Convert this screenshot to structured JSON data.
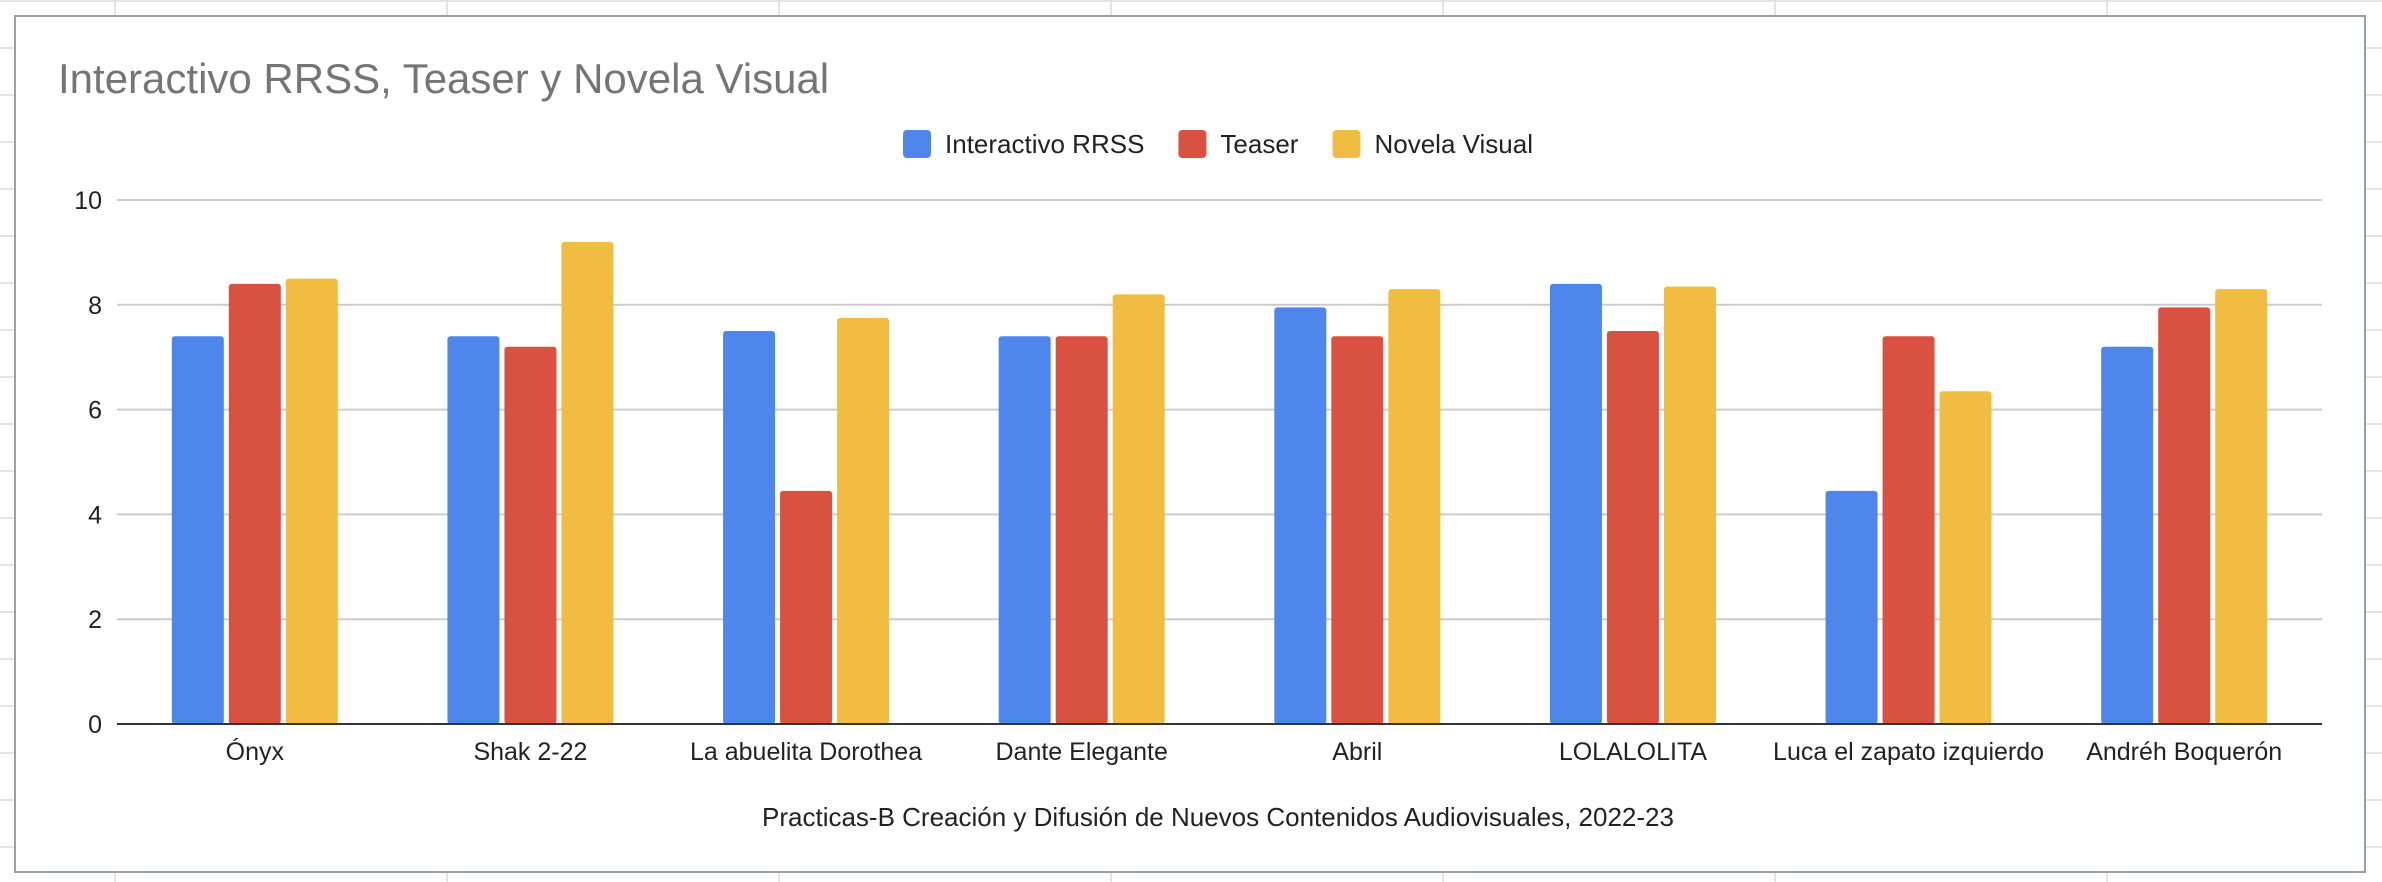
{
  "chart_data": {
    "type": "bar",
    "title": "Interactivo RRSS, Teaser y Novela Visual",
    "xlabel": "Practicas-B Creación y Difusión de Nuevos Contenidos Audiovisuales, 2022-23",
    "ylabel": "",
    "ylim": [
      0,
      10
    ],
    "yticks": [
      0,
      2,
      4,
      6,
      8,
      10
    ],
    "grid": true,
    "legend_position": "top",
    "categories": [
      "Ónyx",
      "Shak 2-22",
      "La abuelita Dorothea",
      "Dante Elegante",
      "Abril",
      "LOLALOLITA",
      "Luca el zapato izquierdo",
      "Andréh Boquerón"
    ],
    "series": [
      {
        "name": "Interactivo RRSS",
        "color": "#4f86ec",
        "values": [
          7.4,
          7.4,
          7.5,
          7.4,
          7.95,
          8.4,
          4.45,
          7.2
        ]
      },
      {
        "name": "Teaser",
        "color": "#d95141",
        "values": [
          8.4,
          7.2,
          4.45,
          7.4,
          7.4,
          7.5,
          7.4,
          7.95
        ]
      },
      {
        "name": "Novela Visual",
        "color": "#f1bc42",
        "values": [
          8.5,
          9.2,
          7.75,
          8.2,
          8.3,
          8.35,
          6.35,
          8.3
        ]
      }
    ]
  }
}
